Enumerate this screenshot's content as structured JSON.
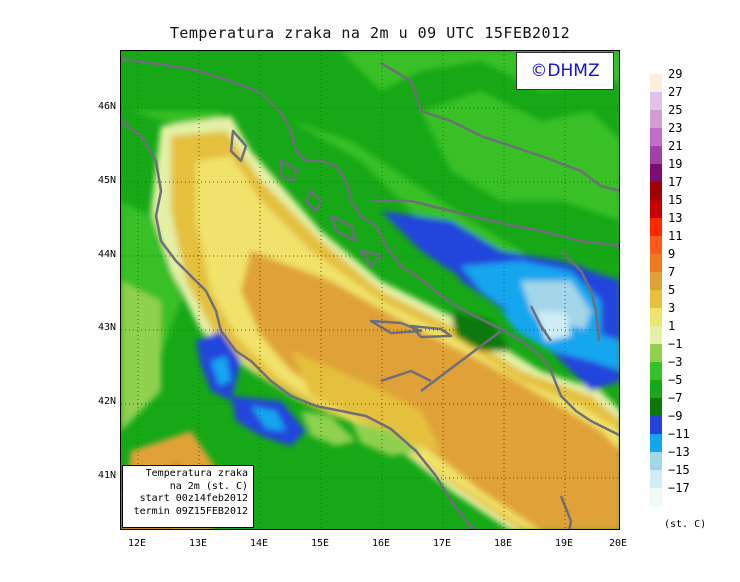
{
  "title": "Temperatura zraka na 2m u 09 UTC 15FEB2012",
  "copyright": "©DHMZ",
  "info": {
    "line1": "Temperatura zraka",
    "line2": "na 2m (st. C)",
    "line3": "start 00z14feb2012",
    "line4": "termin 09Z15FEB2012"
  },
  "axes": {
    "lat_labels": [
      "46N",
      "45N",
      "44N",
      "43N",
      "42N",
      "41N"
    ],
    "lon_labels": [
      "12E",
      "13E",
      "14E",
      "15E",
      "16E",
      "17E",
      "18E",
      "19E",
      "20E"
    ]
  },
  "legend": {
    "labels": [
      "29",
      "27",
      "25",
      "23",
      "21",
      "19",
      "17",
      "15",
      "13",
      "11",
      "9",
      "7",
      "5",
      "3",
      "1",
      "−1",
      "−3",
      "−5",
      "−7",
      "−9",
      "−11",
      "−13",
      "−15",
      "−17"
    ],
    "colors": [
      "#fdeedc",
      "#ddc3e6",
      "#d49bd6",
      "#c36ccc",
      "#a040ac",
      "#7c0c70",
      "#a00000",
      "#c80000",
      "#ff2800",
      "#ff5a1e",
      "#f07823",
      "#e0a238",
      "#e4c03c",
      "#f0e26a",
      "#e4f0a6",
      "#8fd050",
      "#39c025",
      "#17a817",
      "#0b780b",
      "#2244dc",
      "#12a6ee",
      "#a3d6e8",
      "#cfeef4",
      "#f0fafa"
    ],
    "unit": "(st. C)"
  }
}
